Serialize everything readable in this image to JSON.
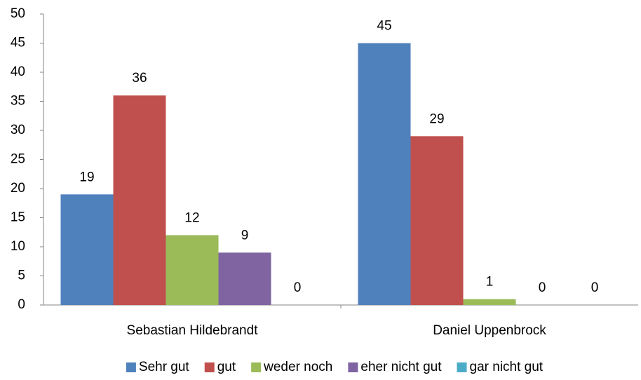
{
  "chart_data": {
    "type": "bar",
    "categories": [
      "Sebastian Hildebrandt",
      "Daniel Uppenbrock"
    ],
    "series": [
      {
        "name": "Sehr gut",
        "color": "#4f81bd",
        "values": [
          19,
          45
        ]
      },
      {
        "name": "gut",
        "color": "#c0504d",
        "values": [
          36,
          29
        ]
      },
      {
        "name": "weder noch",
        "color": "#9bbb59",
        "values": [
          12,
          1
        ]
      },
      {
        "name": "eher nicht gut",
        "color": "#8064a2",
        "values": [
          9,
          0
        ]
      },
      {
        "name": "gar nicht gut",
        "color": "#4bacc6",
        "values": [
          0,
          0
        ]
      }
    ],
    "ylim": [
      0,
      50
    ],
    "yticks": [
      0,
      5,
      10,
      15,
      20,
      25,
      30,
      35,
      40,
      45,
      50
    ],
    "grid": false,
    "legend": "bottom"
  }
}
